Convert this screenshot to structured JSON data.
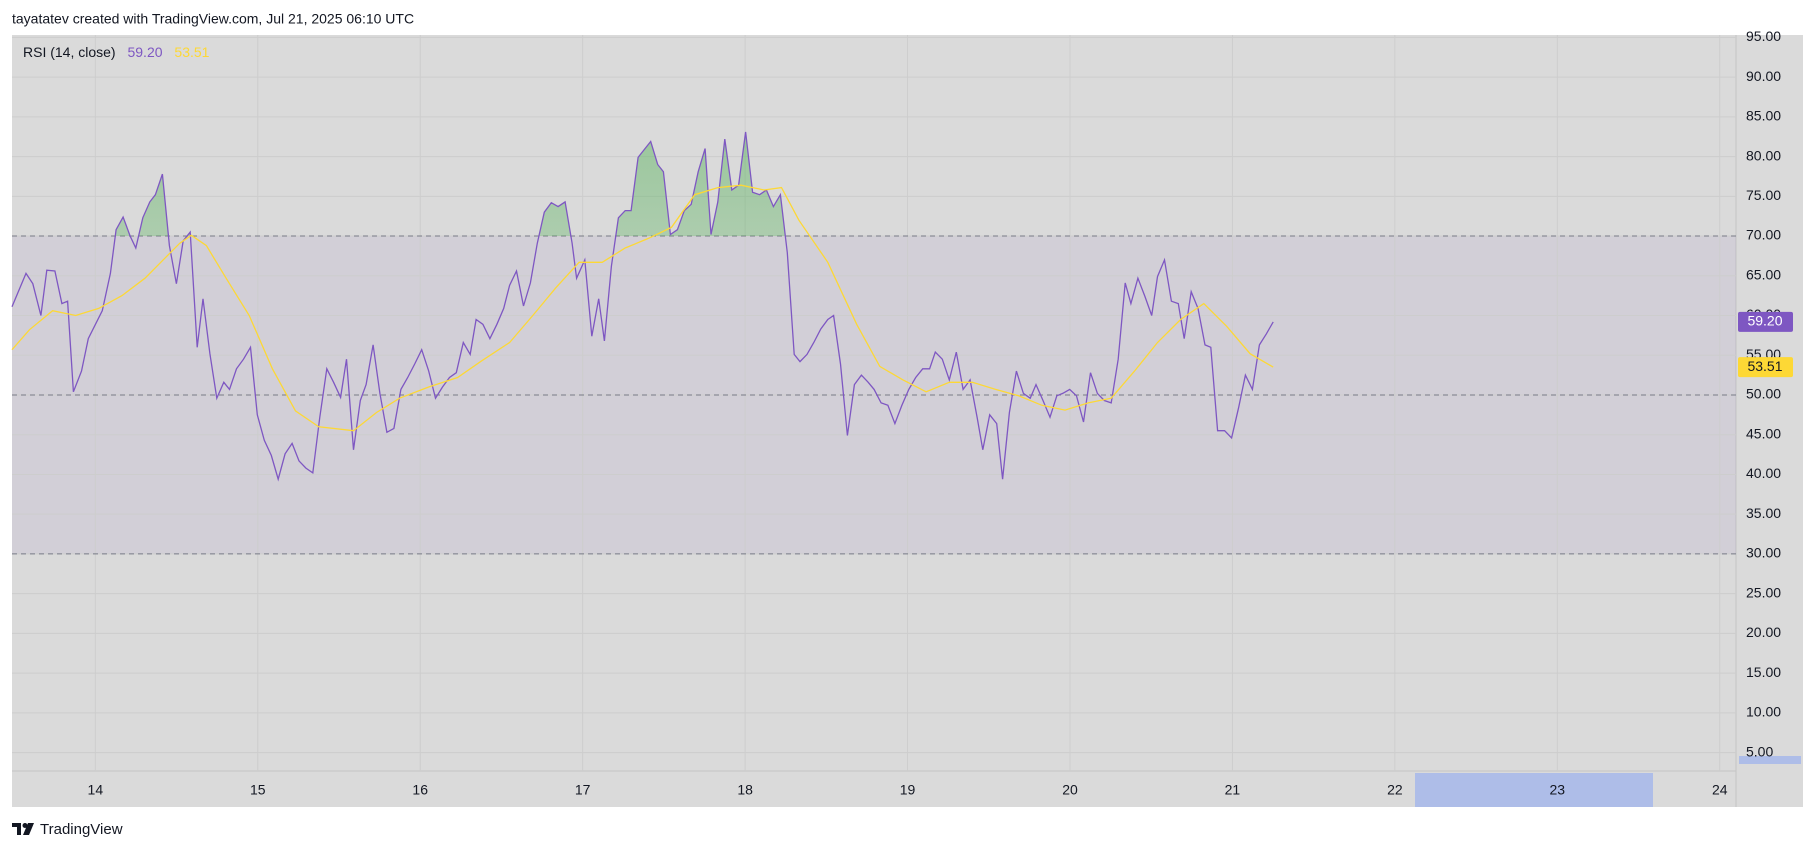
{
  "header": {
    "text": "tayatatev created with TradingView.com, Jul 21, 2025 06:10 UTC"
  },
  "chart_data": {
    "type": "line",
    "title": "RSI (14, close)",
    "xlim": [
      13.487,
      24.1
    ],
    "xticks": [
      14,
      15,
      16,
      17,
      18,
      19,
      20,
      21,
      22,
      23,
      24
    ],
    "ylim": [
      -1.85,
      95.3
    ],
    "yticks": [
      {
        "value": 5,
        "label": "5.00"
      },
      {
        "value": 10,
        "label": "10.00"
      },
      {
        "value": 15,
        "label": "15.00"
      },
      {
        "value": 20,
        "label": "20.00"
      },
      {
        "value": 25,
        "label": "25.00"
      },
      {
        "value": 30,
        "label": "30.00"
      },
      {
        "value": 35,
        "label": "35.00"
      },
      {
        "value": 40,
        "label": "40.00"
      },
      {
        "value": 45,
        "label": "45.00"
      },
      {
        "value": 50,
        "label": "50.00"
      },
      {
        "value": 55,
        "label": "55.00"
      },
      {
        "value": 60,
        "label": "60.00"
      },
      {
        "value": 65,
        "label": "65.00"
      },
      {
        "value": 70,
        "label": "70.00"
      },
      {
        "value": 75,
        "label": "75.00"
      },
      {
        "value": 80,
        "label": "80.00"
      },
      {
        "value": 85,
        "label": "85.00"
      },
      {
        "value": 90,
        "label": "90.00"
      },
      {
        "value": 95,
        "label": "95.00"
      }
    ],
    "grid": true,
    "levels": [
      70,
      50,
      30
    ],
    "series": [
      {
        "color": "#7e57c2",
        "last_label": "59.20",
        "x": [
          13.487,
          13.573,
          13.615,
          13.665,
          13.701,
          13.751,
          13.794,
          13.829,
          13.865,
          13.915,
          13.957,
          14.043,
          14.093,
          14.128,
          14.171,
          14.214,
          14.249,
          14.292,
          14.335,
          14.37,
          14.413,
          14.456,
          14.499,
          14.541,
          14.584,
          14.627,
          14.663,
          14.705,
          14.748,
          14.791,
          14.826,
          14.869,
          14.912,
          14.955,
          14.997,
          15.04,
          15.083,
          15.126,
          15.168,
          15.211,
          15.254,
          15.296,
          15.339,
          15.382,
          15.425,
          15.467,
          15.51,
          15.546,
          15.589,
          15.631,
          15.667,
          15.71,
          15.752,
          15.795,
          15.838,
          15.881,
          15.923,
          15.966,
          16.009,
          16.052,
          16.094,
          16.137,
          16.18,
          16.222,
          16.265,
          16.308,
          16.344,
          16.386,
          16.429,
          16.472,
          16.514,
          16.55,
          16.593,
          16.636,
          16.678,
          16.721,
          16.764,
          16.807,
          16.849,
          16.892,
          16.935,
          16.963,
          17.013,
          17.056,
          17.099,
          17.134,
          17.177,
          17.22,
          17.262,
          17.298,
          17.341,
          17.384,
          17.419,
          17.462,
          17.497,
          17.54,
          17.583,
          17.626,
          17.668,
          17.711,
          17.754,
          17.79,
          17.832,
          17.875,
          17.918,
          17.96,
          18.003,
          18.046,
          18.089,
          18.131,
          18.174,
          18.217,
          18.26,
          18.302,
          18.338,
          18.381,
          18.423,
          18.466,
          18.509,
          18.545,
          18.587,
          18.63,
          18.673,
          18.716,
          18.758,
          18.794,
          18.837,
          18.879,
          18.922,
          18.965,
          19.008,
          19.05,
          19.093,
          19.136,
          19.171,
          19.214,
          19.257,
          19.3,
          19.342,
          19.385,
          19.428,
          19.463,
          19.506,
          19.549,
          19.585,
          19.627,
          19.67,
          19.713,
          19.755,
          19.791,
          19.834,
          19.877,
          19.919,
          19.955,
          19.998,
          20.04,
          20.083,
          20.126,
          20.169,
          20.211,
          20.254,
          20.297,
          20.34,
          20.375,
          20.418,
          20.461,
          20.503,
          20.539,
          20.582,
          20.624,
          20.667,
          20.703,
          20.746,
          20.788,
          20.831,
          20.867,
          20.909,
          20.952,
          20.995,
          21.038,
          21.08,
          21.123,
          21.166,
          21.209,
          21.251
        ],
        "values": [
          61.1,
          65.3,
          64,
          60,
          65.7,
          65.6,
          61.5,
          61.8,
          50.4,
          53,
          57.1,
          60.6,
          65.3,
          70.8,
          72.4,
          70,
          68.5,
          72.3,
          74.3,
          75.2,
          77.8,
          68.8,
          64,
          69.4,
          70.5,
          56,
          62.1,
          55.2,
          49.6,
          51.6,
          50.7,
          53.3,
          54.5,
          56,
          47.5,
          44.3,
          42.4,
          39.4,
          42.6,
          43.9,
          41.7,
          40.8,
          40.2,
          47.2,
          53.3,
          51.6,
          49.7,
          54.5,
          43.1,
          49.3,
          51.3,
          56.3,
          50.2,
          45.3,
          45.8,
          50.7,
          52.2,
          53.9,
          55.7,
          53,
          49.6,
          51,
          52.2,
          52.8,
          56.6,
          55.1,
          59.5,
          58.9,
          57.1,
          58.9,
          60.9,
          63.8,
          65.6,
          61.2,
          64.1,
          69.1,
          73,
          74.2,
          73.7,
          74.3,
          69.1,
          64.7,
          67,
          57.4,
          62.1,
          56.8,
          66.2,
          72.3,
          73.2,
          73.2,
          79.9,
          81,
          81.9,
          79,
          78.1,
          70.2,
          70.8,
          73.2,
          74,
          78.1,
          81,
          70.2,
          74.3,
          82.2,
          75.8,
          76.4,
          83.1,
          75.5,
          75.2,
          75.8,
          73.7,
          75.2,
          67.9,
          55.1,
          54.2,
          55.1,
          56.6,
          58.3,
          59.5,
          60,
          53.9,
          44.9,
          51.3,
          52.5,
          51.6,
          50.7,
          49,
          48.7,
          46.4,
          48.7,
          50.7,
          52.2,
          53.3,
          53.3,
          55.4,
          54.5,
          51.9,
          55.4,
          50.7,
          51.9,
          47.2,
          43.1,
          47.5,
          46.4,
          39.4,
          47.8,
          53,
          50.2,
          49.6,
          51.3,
          49.3,
          47.2,
          49.9,
          50.2,
          50.7,
          49.9,
          46.6,
          52.8,
          50.2,
          49.3,
          49,
          54.5,
          64.1,
          61.5,
          64.7,
          62.4,
          60,
          64.9,
          67,
          61.8,
          61.5,
          57.1,
          63,
          60.9,
          56.3,
          56,
          45.5,
          45.5,
          44.6,
          48.4,
          52.5,
          50.7,
          56.3,
          57.7,
          59.2
        ]
      },
      {
        "color": "#fdd835",
        "last_label": "53.51",
        "x": [
          13.487,
          13.594,
          13.737,
          13.879,
          14.021,
          14.164,
          14.306,
          14.413,
          14.52,
          14.591,
          14.684,
          14.805,
          14.947,
          15.09,
          15.232,
          15.375,
          15.589,
          15.731,
          15.873,
          16.052,
          16.23,
          16.372,
          16.55,
          16.693,
          16.835,
          16.978,
          17.12,
          17.262,
          17.405,
          17.547,
          17.69,
          17.832,
          17.975,
          18.117,
          18.224,
          18.331,
          18.509,
          18.687,
          18.829,
          18.972,
          19.114,
          19.257,
          19.399,
          19.542,
          19.684,
          19.827,
          19.969,
          20.112,
          20.254,
          20.397,
          20.539,
          20.681,
          20.824,
          20.966,
          21.109,
          21.251
        ],
        "values": [
          55.7,
          58.2,
          60.6,
          60,
          60.9,
          62.5,
          64.7,
          66.9,
          69.1,
          70.1,
          68.8,
          64.7,
          60,
          53.3,
          48,
          46,
          45.5,
          47.8,
          49.6,
          51,
          52.2,
          54.2,
          56.6,
          60,
          63.5,
          66.7,
          66.7,
          68.5,
          69.7,
          71.1,
          75.2,
          76.1,
          76.4,
          75.8,
          76.1,
          72,
          66.7,
          58.9,
          53.6,
          51.9,
          50.4,
          51.6,
          51.6,
          50.7,
          49.9,
          48.7,
          48.1,
          49,
          49.6,
          53,
          56.6,
          59.5,
          61.5,
          58.6,
          55.2,
          53.51
        ]
      }
    ]
  },
  "footer": {
    "brand": "TradingView"
  }
}
